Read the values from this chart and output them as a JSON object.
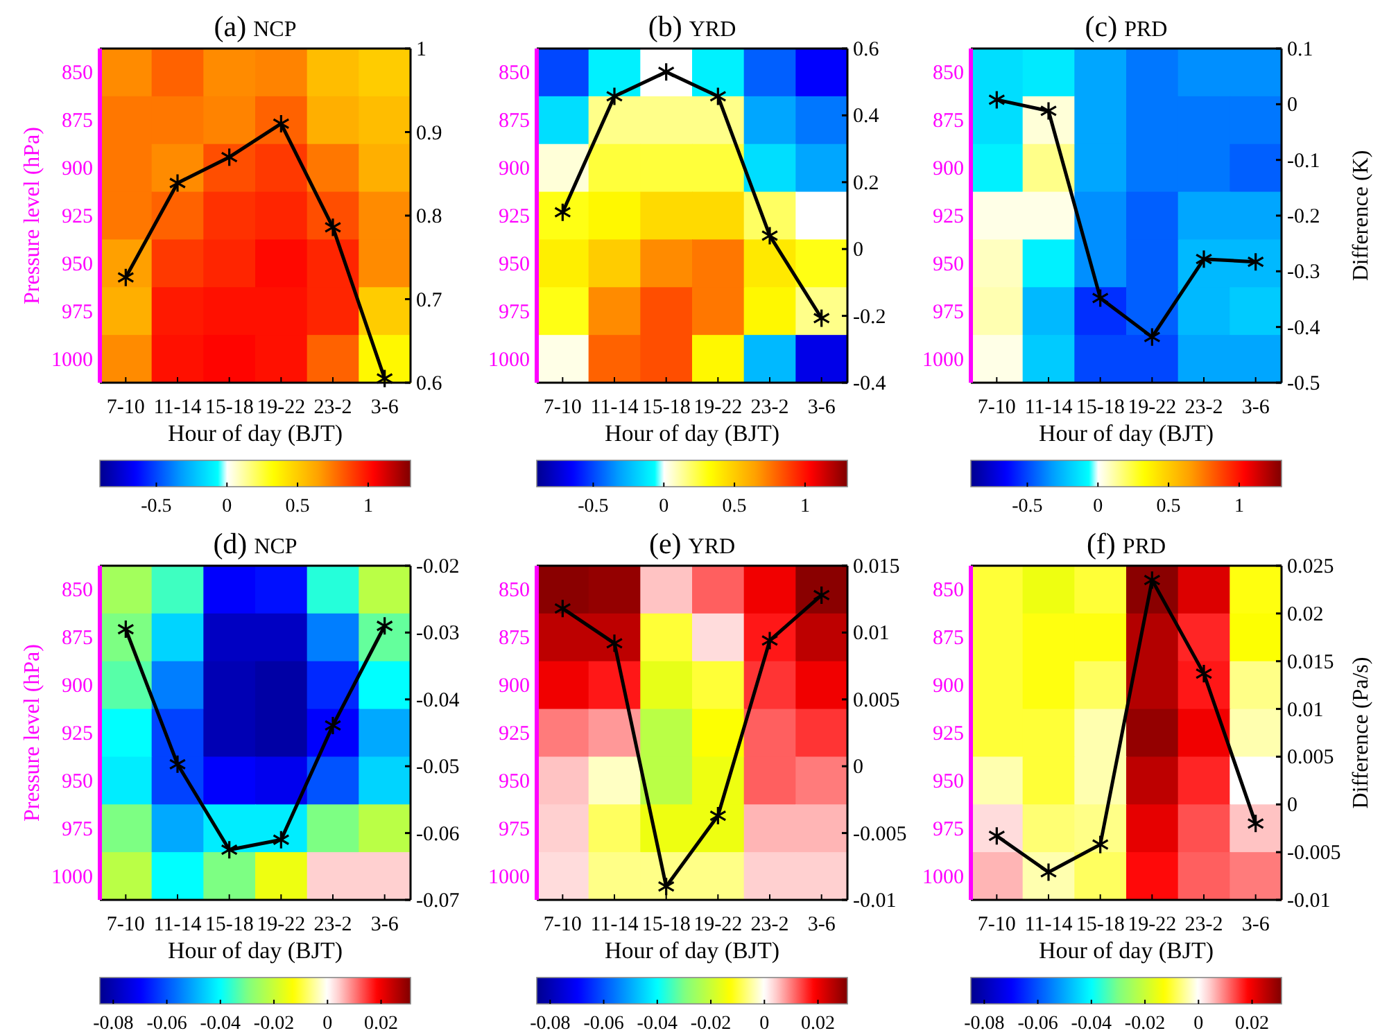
{
  "chart_data": [
    {
      "type": "heatmap",
      "title": "(a) NCP",
      "xlabel": "Hour of day (BJT)",
      "ylabel": "Pressure level (hPa)",
      "categories": [
        "7-10",
        "11-14",
        "15-18",
        "19-22",
        "23-2",
        "3-6"
      ],
      "y_categories": [
        "850",
        "875",
        "900",
        "925",
        "950",
        "975",
        "1000"
      ],
      "cells": [
        [
          0.7,
          0.8,
          0.7,
          0.72,
          0.55,
          0.5
        ],
        [
          0.75,
          0.75,
          0.72,
          0.8,
          0.6,
          0.55
        ],
        [
          0.75,
          0.7,
          0.85,
          0.9,
          0.75,
          0.6
        ],
        [
          0.75,
          0.8,
          0.92,
          0.95,
          0.85,
          0.7
        ],
        [
          0.65,
          0.9,
          0.95,
          1.02,
          0.95,
          0.7
        ],
        [
          0.6,
          0.98,
          1.0,
          1.0,
          0.95,
          0.5
        ],
        [
          0.7,
          1.0,
          1.03,
          1.0,
          0.8,
          0.35
        ]
      ],
      "clim": [
        -0.9,
        1.3
      ],
      "cticks": [
        -0.5,
        0,
        0.5,
        1
      ],
      "series": [
        {
          "type": "line",
          "axis": "y2",
          "color": "#000000",
          "values": [
            0.726,
            0.839,
            0.87,
            0.91,
            0.786,
            0.605
          ]
        }
      ],
      "y2lim": [
        0.6,
        1
      ],
      "y2ticks": [
        0.6,
        0.7,
        0.8,
        0.9,
        1
      ],
      "marker": "cross"
    },
    {
      "type": "heatmap",
      "title": "(b) YRD",
      "xlabel": "Hour of day (BJT)",
      "categories": [
        "7-10",
        "11-14",
        "15-18",
        "19-22",
        "23-2",
        "3-6"
      ],
      "y_categories": [
        "850",
        "875",
        "900",
        "925",
        "950",
        "975",
        "1000"
      ],
      "cells": [
        [
          -0.5,
          -0.1,
          0,
          -0.1,
          -0.45,
          -0.65
        ],
        [
          -0.15,
          0.15,
          0.15,
          0.15,
          -0.3,
          -0.4
        ],
        [
          0.05,
          0.25,
          0.25,
          0.25,
          -0.15,
          -0.3
        ],
        [
          0.3,
          0.35,
          0.45,
          0.45,
          0.2,
          0
        ],
        [
          0.38,
          0.5,
          0.7,
          0.75,
          0.4,
          0.3
        ],
        [
          0.3,
          0.7,
          0.85,
          0.75,
          0.35,
          0.15
        ],
        [
          0.03,
          0.8,
          0.85,
          0.35,
          -0.25,
          -0.7
        ]
      ],
      "clim": [
        -0.9,
        1.3
      ],
      "cticks": [
        -0.5,
        0,
        0.5,
        1
      ],
      "series": [
        {
          "type": "line",
          "axis": "y2",
          "color": "#000000",
          "values": [
            0.11,
            0.457,
            0.53,
            0.457,
            0.04,
            -0.207
          ]
        }
      ],
      "y2lim": [
        -0.4,
        0.6
      ],
      "y2ticks": [
        -0.4,
        -0.2,
        0,
        0.2,
        0.4,
        0.6
      ],
      "marker": "cross"
    },
    {
      "type": "heatmap",
      "title": "(c) PRD",
      "xlabel": "Hour of day (BJT)",
      "y2label": "Difference (K)",
      "categories": [
        "7-10",
        "11-14",
        "15-18",
        "19-22",
        "23-2",
        "3-6"
      ],
      "y_categories": [
        "850",
        "875",
        "900",
        "925",
        "950",
        "975",
        "1000"
      ],
      "cells": [
        [
          -0.15,
          -0.12,
          -0.3,
          -0.4,
          -0.35,
          -0.35
        ],
        [
          -0.15,
          0.05,
          -0.3,
          -0.4,
          -0.4,
          -0.4
        ],
        [
          -0.1,
          0.15,
          -0.3,
          -0.4,
          -0.4,
          -0.45
        ],
        [
          0.03,
          0.03,
          -0.35,
          -0.45,
          -0.3,
          -0.3
        ],
        [
          0.08,
          -0.1,
          -0.35,
          -0.45,
          -0.25,
          -0.25
        ],
        [
          0.1,
          -0.25,
          -0.55,
          -0.45,
          -0.25,
          -0.2
        ],
        [
          0.03,
          -0.2,
          -0.5,
          -0.5,
          -0.3,
          -0.3
        ]
      ],
      "clim": [
        -0.9,
        1.3
      ],
      "cticks": [
        -0.5,
        0,
        0.5,
        1
      ],
      "series": [
        {
          "type": "line",
          "axis": "y2",
          "color": "#000000",
          "values": [
            0.008,
            -0.012,
            -0.348,
            -0.418,
            -0.278,
            -0.283
          ]
        }
      ],
      "y2lim": [
        -0.5,
        0.1
      ],
      "y2ticks": [
        -0.5,
        -0.4,
        -0.3,
        -0.2,
        -0.1,
        0,
        0.1
      ],
      "marker": "cross"
    },
    {
      "type": "heatmap",
      "title": "(d) NCP",
      "xlabel": "Hour of day (BJT)",
      "ylabel": "Pressure level (hPa)",
      "categories": [
        "7-10",
        "11-14",
        "15-18",
        "19-22",
        "23-2",
        "3-6"
      ],
      "y_categories": [
        "850",
        "875",
        "900",
        "925",
        "950",
        "975",
        "1000"
      ],
      "cells": [
        [
          -0.025,
          -0.035,
          -0.07,
          -0.068,
          -0.037,
          -0.022
        ],
        [
          -0.03,
          -0.045,
          -0.078,
          -0.078,
          -0.055,
          -0.032
        ],
        [
          -0.033,
          -0.055,
          -0.08,
          -0.082,
          -0.065,
          -0.04
        ],
        [
          -0.04,
          -0.062,
          -0.08,
          -0.082,
          -0.07,
          -0.05
        ],
        [
          -0.042,
          -0.062,
          -0.07,
          -0.072,
          -0.06,
          -0.045
        ],
        [
          -0.03,
          -0.05,
          -0.042,
          -0.042,
          -0.03,
          -0.022
        ],
        [
          -0.022,
          -0.04,
          -0.03,
          -0.015,
          0.004,
          0.004
        ]
      ],
      "clim": [
        -0.085,
        0.031
      ],
      "cticks": [
        -0.08,
        -0.06,
        -0.04,
        -0.02,
        0,
        0.02
      ],
      "series": [
        {
          "type": "line",
          "axis": "y2",
          "color": "#000000",
          "values": [
            -0.0295,
            -0.0497,
            -0.0625,
            -0.061,
            -0.0439,
            -0.029
          ]
        }
      ],
      "y2lim": [
        -0.07,
        -0.02
      ],
      "y2ticks": [
        -0.07,
        -0.06,
        -0.05,
        -0.04,
        -0.03,
        -0.02
      ],
      "marker": "cross"
    },
    {
      "type": "heatmap",
      "title": "(e) YRD",
      "xlabel": "Hour of day (BJT)",
      "categories": [
        "7-10",
        "11-14",
        "15-18",
        "19-22",
        "23-2",
        "3-6"
      ],
      "y_categories": [
        "850",
        "875",
        "900",
        "925",
        "950",
        "975",
        "1000"
      ],
      "cells": [
        [
          0.03,
          0.029,
          0.005,
          0.012,
          0.02,
          0.03
        ],
        [
          0.025,
          0.025,
          -0.01,
          0.003,
          0.017,
          0.025
        ],
        [
          0.02,
          0.017,
          -0.016,
          -0.01,
          0.015,
          0.02
        ],
        [
          0.01,
          0.008,
          -0.022,
          -0.013,
          0.012,
          0.015
        ],
        [
          0.005,
          -0.003,
          -0.022,
          -0.015,
          0.012,
          0.01
        ],
        [
          0.004,
          -0.008,
          -0.015,
          -0.015,
          0.006,
          0.006
        ],
        [
          0.003,
          -0.006,
          -0.006,
          -0.006,
          0.004,
          0.004
        ]
      ],
      "clim": [
        -0.085,
        0.031
      ],
      "cticks": [
        -0.08,
        -0.06,
        -0.04,
        -0.02,
        0,
        0.02
      ],
      "series": [
        {
          "type": "line",
          "axis": "y2",
          "color": "#000000",
          "values": [
            0.0118,
            0.0092,
            -0.009,
            -0.0037,
            0.0094,
            0.0128
          ]
        }
      ],
      "y2lim": [
        -0.01,
        0.015
      ],
      "y2ticks": [
        -0.01,
        -0.005,
        0,
        0.005,
        0.01,
        0.015
      ],
      "marker": "cross"
    },
    {
      "type": "heatmap",
      "title": "(f) PRD",
      "xlabel": "Hour of day (BJT)",
      "y2label": "Difference (Pa/s)",
      "categories": [
        "7-10",
        "11-14",
        "15-18",
        "19-22",
        "23-2",
        "3-6"
      ],
      "y_categories": [
        "850",
        "875",
        "900",
        "925",
        "950",
        "975",
        "1000"
      ],
      "cells": [
        [
          -0.01,
          -0.015,
          -0.01,
          0.03,
          0.022,
          -0.012
        ],
        [
          -0.01,
          -0.012,
          -0.012,
          0.026,
          0.016,
          -0.013
        ],
        [
          -0.01,
          -0.012,
          -0.008,
          0.026,
          0.017,
          -0.006
        ],
        [
          -0.01,
          -0.01,
          -0.004,
          0.029,
          0.02,
          -0.004
        ],
        [
          -0.004,
          -0.01,
          -0.004,
          0.025,
          0.016,
          0
        ],
        [
          0.003,
          -0.007,
          -0.006,
          0.021,
          0.013,
          0.005
        ],
        [
          0.006,
          -0.004,
          -0.008,
          0.018,
          0.012,
          0.01
        ]
      ],
      "clim": [
        -0.085,
        0.031
      ],
      "cticks": [
        -0.08,
        -0.06,
        -0.04,
        -0.02,
        0,
        0.02
      ],
      "series": [
        {
          "type": "line",
          "axis": "y2",
          "color": "#000000",
          "values": [
            -0.0033,
            -0.0071,
            -0.0042,
            0.0235,
            0.0137,
            -0.002
          ]
        }
      ],
      "y2lim": [
        -0.01,
        0.025
      ],
      "y2ticks": [
        -0.01,
        -0.005,
        0,
        0.005,
        0.01,
        0.015,
        0.02,
        0.025
      ],
      "marker": "cross"
    }
  ]
}
